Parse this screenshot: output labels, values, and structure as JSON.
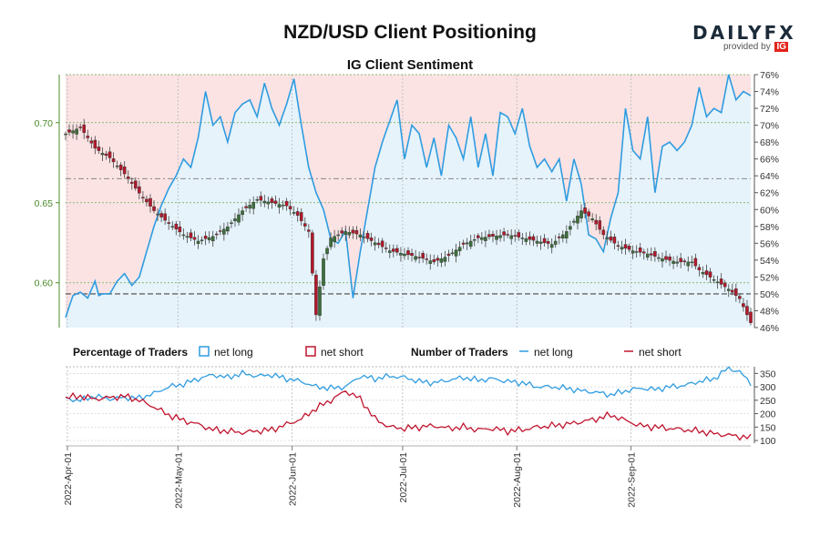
{
  "header": {
    "title": "NZD/USD Client Positioning",
    "subtitle": "IG Client Sentiment",
    "brand_logo": "DAILYFX",
    "brand_provided": "provided by",
    "brand_ig": "IG"
  },
  "legend": {
    "pct_title": "Percentage of Traders",
    "pct_long": "net long",
    "pct_short": "net short",
    "num_title": "Number of Traders",
    "num_long": "net long",
    "num_short": "net short"
  },
  "colors": {
    "long": "#2f9ce0",
    "short": "#c0152f",
    "bg_long": "#e6f3fb",
    "bg_short": "#fbe3e4",
    "left_axis": "#4a8a2a",
    "candle_up": "#3d6e3a",
    "candle_down": "#b2182b"
  },
  "chart_data": [
    {
      "type": "candlestick+line",
      "name_price": "NZD/USD",
      "y_left_ticks": [
        "0.60",
        "0.65",
        "0.70"
      ],
      "y_left_range": [
        0.572,
        0.73
      ],
      "y_right_ticks": [
        "46%",
        "48%",
        "50%",
        "52%",
        "54%",
        "56%",
        "58%",
        "60%",
        "62%",
        "64%",
        "66%",
        "68%",
        "70%",
        "72%",
        "74%",
        "76%"
      ],
      "y_right_range": [
        46,
        76
      ],
      "reference_lines": [
        0.665,
        50
      ],
      "x_ticks": [
        "2022-Apr-01",
        "2022-May-01",
        "2022-Jun-01",
        "2022-Jul-01",
        "2022-Aug-01",
        "2022-Sep-01"
      ],
      "price_anchors": [
        [
          0,
          0.693
        ],
        [
          4,
          0.697
        ],
        [
          8,
          0.684
        ],
        [
          12,
          0.678
        ],
        [
          16,
          0.668
        ],
        [
          20,
          0.656
        ],
        [
          24,
          0.645
        ],
        [
          28,
          0.637
        ],
        [
          32,
          0.63
        ],
        [
          36,
          0.626
        ],
        [
          40,
          0.629
        ],
        [
          44,
          0.635
        ],
        [
          48,
          0.645
        ],
        [
          52,
          0.652
        ],
        [
          56,
          0.65
        ],
        [
          60,
          0.648
        ],
        [
          63,
          0.642
        ],
        [
          66,
          0.632
        ],
        [
          68,
          0.58
        ],
        [
          70,
          0.615
        ],
        [
          72,
          0.628
        ],
        [
          76,
          0.632
        ],
        [
          80,
          0.63
        ],
        [
          84,
          0.625
        ],
        [
          88,
          0.62
        ],
        [
          92,
          0.618
        ],
        [
          96,
          0.616
        ],
        [
          100,
          0.613
        ],
        [
          104,
          0.617
        ],
        [
          108,
          0.624
        ],
        [
          112,
          0.628
        ],
        [
          116,
          0.629
        ],
        [
          120,
          0.63
        ],
        [
          124,
          0.628
        ],
        [
          128,
          0.626
        ],
        [
          132,
          0.624
        ],
        [
          136,
          0.632
        ],
        [
          140,
          0.645
        ],
        [
          143,
          0.64
        ],
        [
          146,
          0.63
        ],
        [
          150,
          0.623
        ],
        [
          154,
          0.62
        ],
        [
          158,
          0.618
        ],
        [
          162,
          0.615
        ],
        [
          166,
          0.613
        ],
        [
          170,
          0.613
        ],
        [
          172,
          0.608
        ],
        [
          176,
          0.602
        ],
        [
          180,
          0.596
        ],
        [
          183,
          0.59
        ],
        [
          186,
          0.575
        ]
      ],
      "net_long_pct_anchors": [
        [
          0,
          47.2
        ],
        [
          2,
          49.8
        ],
        [
          4,
          50.2
        ],
        [
          6,
          49.5
        ],
        [
          8,
          51.5
        ],
        [
          9,
          49.8
        ],
        [
          10,
          50.0
        ],
        [
          12,
          50.0
        ],
        [
          14,
          51.5
        ],
        [
          16,
          52.4
        ],
        [
          18,
          51.0
        ],
        [
          20,
          52.0
        ],
        [
          22,
          55.0
        ],
        [
          24,
          58.0
        ],
        [
          26,
          60.5
        ],
        [
          28,
          62.5
        ],
        [
          30,
          64.0
        ],
        [
          32,
          66.0
        ],
        [
          34,
          65.0
        ],
        [
          36,
          68.5
        ],
        [
          38,
          74.0
        ],
        [
          40,
          70.0
        ],
        [
          42,
          71.0
        ],
        [
          44,
          68.0
        ],
        [
          46,
          71.5
        ],
        [
          48,
          72.5
        ],
        [
          50,
          73.0
        ],
        [
          52,
          71.0
        ],
        [
          54,
          75.0
        ],
        [
          56,
          72.0
        ],
        [
          58,
          70.0
        ],
        [
          60,
          72.5
        ],
        [
          62,
          75.5
        ],
        [
          64,
          70.0
        ],
        [
          66,
          65.0
        ],
        [
          68,
          62.0
        ],
        [
          70,
          60.0
        ],
        [
          72,
          56.5
        ],
        [
          74,
          56.0
        ],
        [
          76,
          57.5
        ],
        [
          78,
          49.5
        ],
        [
          80,
          55.0
        ],
        [
          82,
          60.0
        ],
        [
          84,
          65.0
        ],
        [
          86,
          68.0
        ],
        [
          88,
          70.5
        ],
        [
          90,
          73.0
        ],
        [
          92,
          66.0
        ],
        [
          94,
          70.0
        ],
        [
          96,
          69.0
        ],
        [
          98,
          65.0
        ],
        [
          100,
          68.5
        ],
        [
          102,
          64.0
        ],
        [
          104,
          70.0
        ],
        [
          106,
          68.5
        ],
        [
          108,
          66.0
        ],
        [
          110,
          71.0
        ],
        [
          112,
          65.0
        ],
        [
          114,
          69.0
        ],
        [
          116,
          64.0
        ],
        [
          118,
          71.5
        ],
        [
          120,
          71.0
        ],
        [
          122,
          69.0
        ],
        [
          124,
          72.0
        ],
        [
          126,
          67.5
        ],
        [
          128,
          65.0
        ],
        [
          130,
          66.0
        ],
        [
          132,
          64.5
        ],
        [
          134,
          66.0
        ],
        [
          136,
          61.0
        ],
        [
          138,
          66.0
        ],
        [
          140,
          63.0
        ],
        [
          142,
          57.0
        ],
        [
          144,
          56.5
        ],
        [
          146,
          55.0
        ],
        [
          148,
          59.0
        ],
        [
          150,
          62.0
        ],
        [
          152,
          72.0
        ],
        [
          154,
          67.0
        ],
        [
          156,
          66.0
        ],
        [
          158,
          71.0
        ],
        [
          160,
          62.0
        ],
        [
          162,
          67.5
        ],
        [
          164,
          68.0
        ],
        [
          166,
          67.0
        ],
        [
          168,
          68.0
        ],
        [
          170,
          70.0
        ],
        [
          172,
          74.5
        ],
        [
          174,
          71.0
        ],
        [
          176,
          72.0
        ],
        [
          178,
          71.5
        ],
        [
          180,
          76.0
        ],
        [
          182,
          73.0
        ],
        [
          184,
          74.0
        ],
        [
          186,
          73.5
        ]
      ],
      "num_right_ticks": [
        "100",
        "150",
        "200",
        "250",
        "300",
        "350"
      ],
      "num_right_range": [
        90,
        375
      ],
      "num_long_anchors": [
        [
          0,
          255
        ],
        [
          4,
          250
        ],
        [
          8,
          265
        ],
        [
          12,
          255
        ],
        [
          16,
          260
        ],
        [
          20,
          258
        ],
        [
          24,
          275
        ],
        [
          28,
          300
        ],
        [
          32,
          310
        ],
        [
          36,
          330
        ],
        [
          40,
          345
        ],
        [
          44,
          335
        ],
        [
          48,
          350
        ],
        [
          52,
          340
        ],
        [
          56,
          345
        ],
        [
          60,
          330
        ],
        [
          64,
          320
        ],
        [
          68,
          300
        ],
        [
          72,
          295
        ],
        [
          76,
          300
        ],
        [
          80,
          340
        ],
        [
          84,
          330
        ],
        [
          88,
          340
        ],
        [
          92,
          335
        ],
        [
          96,
          320
        ],
        [
          100,
          315
        ],
        [
          104,
          325
        ],
        [
          108,
          335
        ],
        [
          112,
          325
        ],
        [
          116,
          330
        ],
        [
          120,
          320
        ],
        [
          124,
          315
        ],
        [
          128,
          300
        ],
        [
          132,
          300
        ],
        [
          136,
          295
        ],
        [
          140,
          285
        ],
        [
          144,
          280
        ],
        [
          148,
          270
        ],
        [
          152,
          285
        ],
        [
          156,
          295
        ],
        [
          160,
          290
        ],
        [
          164,
          300
        ],
        [
          168,
          305
        ],
        [
          172,
          320
        ],
        [
          176,
          330
        ],
        [
          180,
          370
        ],
        [
          183,
          355
        ],
        [
          186,
          315
        ]
      ],
      "num_short_anchors": [
        [
          0,
          260
        ],
        [
          4,
          265
        ],
        [
          8,
          255
        ],
        [
          12,
          260
        ],
        [
          16,
          265
        ],
        [
          20,
          250
        ],
        [
          24,
          225
        ],
        [
          28,
          195
        ],
        [
          32,
          175
        ],
        [
          36,
          160
        ],
        [
          40,
          140
        ],
        [
          44,
          135
        ],
        [
          48,
          130
        ],
        [
          52,
          135
        ],
        [
          56,
          140
        ],
        [
          60,
          160
        ],
        [
          64,
          180
        ],
        [
          68,
          220
        ],
        [
          72,
          250
        ],
        [
          76,
          285
        ],
        [
          80,
          255
        ],
        [
          84,
          180
        ],
        [
          88,
          150
        ],
        [
          92,
          145
        ],
        [
          96,
          150
        ],
        [
          100,
          155
        ],
        [
          104,
          145
        ],
        [
          108,
          150
        ],
        [
          112,
          140
        ],
        [
          116,
          145
        ],
        [
          120,
          135
        ],
        [
          124,
          140
        ],
        [
          128,
          150
        ],
        [
          132,
          155
        ],
        [
          136,
          160
        ],
        [
          140,
          170
        ],
        [
          144,
          180
        ],
        [
          148,
          195
        ],
        [
          152,
          175
        ],
        [
          156,
          155
        ],
        [
          160,
          150
        ],
        [
          164,
          145
        ],
        [
          168,
          140
        ],
        [
          172,
          135
        ],
        [
          176,
          125
        ],
        [
          180,
          120
        ],
        [
          183,
          115
        ],
        [
          186,
          110
        ]
      ]
    }
  ]
}
